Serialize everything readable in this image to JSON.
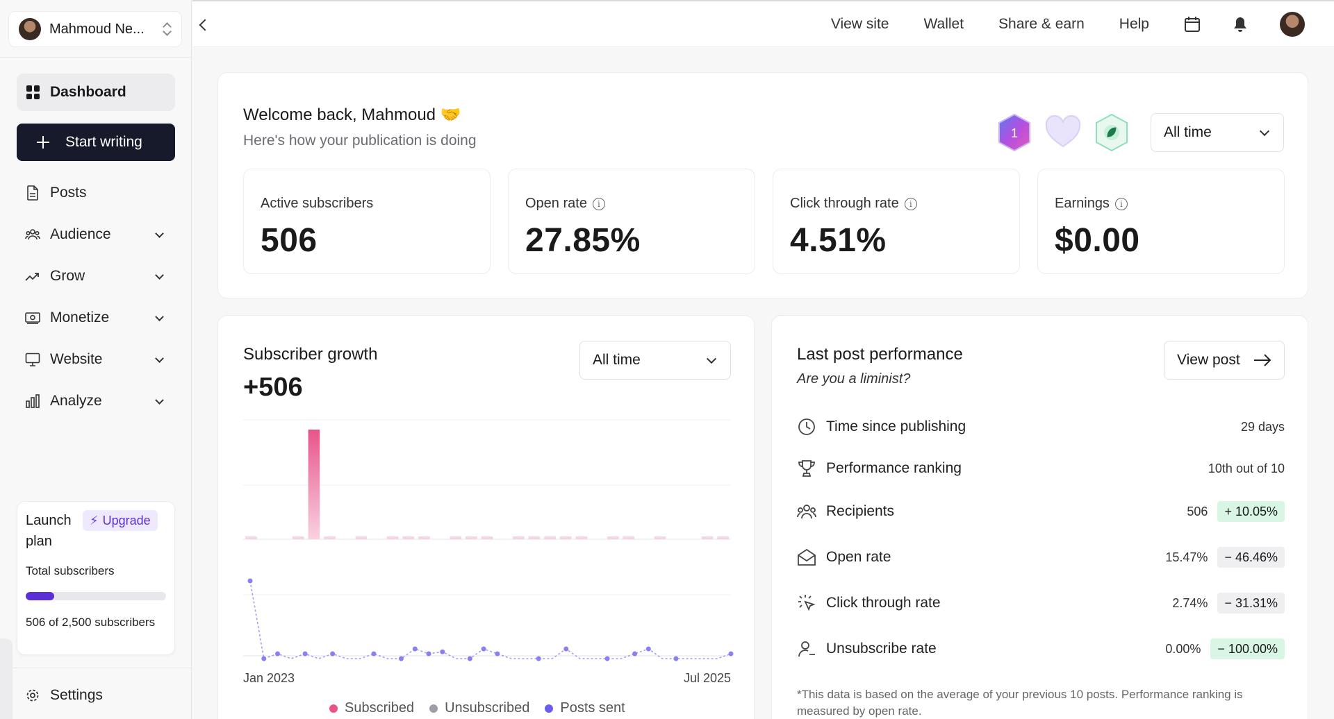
{
  "account": {
    "name": "Mahmoud Ne..."
  },
  "sidebar": {
    "dashboard": "Dashboard",
    "start_writing": "Start writing",
    "items": [
      {
        "label": "Posts",
        "icon": "document-icon",
        "has_chevron": false
      },
      {
        "label": "Audience",
        "icon": "people-icon",
        "has_chevron": true
      },
      {
        "label": "Grow",
        "icon": "trend-up-icon",
        "has_chevron": true
      },
      {
        "label": "Monetize",
        "icon": "money-icon",
        "has_chevron": true
      },
      {
        "label": "Website",
        "icon": "monitor-icon",
        "has_chevron": true
      },
      {
        "label": "Analyze",
        "icon": "bar-chart-icon",
        "has_chevron": true
      }
    ],
    "settings": "Settings"
  },
  "plan": {
    "title": "Launch plan",
    "upgrade": "Upgrade",
    "total_label": "Total subscribers",
    "progress_fraction": 0.2024,
    "count_text": "506 of 2,500 subscribers"
  },
  "topbar": {
    "links": [
      "View site",
      "Wallet",
      "Share & earn",
      "Help"
    ],
    "icons": [
      "calendar-icon",
      "bell-icon",
      "avatar"
    ]
  },
  "welcome": {
    "title": "Welcome back, Mahmoud 🤝",
    "subtitle": "Here's how your publication is doing",
    "badge_number": "1",
    "time_filter": "All time"
  },
  "stats": [
    {
      "label": "Active subscribers",
      "value": "506",
      "info": false
    },
    {
      "label": "Open rate",
      "value": "27.85%",
      "info": true
    },
    {
      "label": "Click through rate",
      "value": "4.51%",
      "info": true
    },
    {
      "label": "Earnings",
      "value": "$0.00",
      "info": true
    }
  ],
  "growth": {
    "title": "Subscriber growth",
    "value": "+506",
    "time_filter": "All time"
  },
  "chart_data": {
    "type": "bar",
    "x_tick_labels": [
      "Jan 2023",
      "Jul 2025"
    ],
    "series": [
      {
        "name": "Subscribed",
        "color": "#e8548a",
        "values": [
          1,
          0,
          0,
          0,
          200,
          0,
          0,
          0,
          0,
          0,
          0,
          0,
          0,
          0,
          0,
          0,
          0,
          0,
          0,
          0,
          0,
          0,
          0,
          0,
          0,
          0,
          0,
          0,
          0,
          0,
          0
        ]
      },
      {
        "name": "Unsubscribed",
        "color": "#9e9ea6",
        "values": []
      },
      {
        "name": "Posts sent",
        "color": "#6b5cf0",
        "values": []
      }
    ],
    "bars_small": [
      6,
      0,
      0,
      3,
      3,
      3,
      0,
      3,
      0,
      3,
      3,
      12,
      0,
      3,
      3,
      3,
      0,
      3,
      3,
      4,
      3,
      3,
      0,
      8,
      3,
      0,
      3,
      0,
      0,
      3,
      3
    ],
    "posts_sent": [
      8,
      0,
      0.5,
      0,
      0.5,
      0,
      0.5,
      0,
      0,
      0.5,
      0,
      0,
      1,
      0.5,
      0.7,
      0,
      0,
      1,
      0.5,
      0,
      0,
      0,
      0,
      1,
      0,
      0,
      0,
      0,
      0.5,
      1,
      0,
      0,
      0,
      0,
      0,
      0.5
    ],
    "legend_placement": "bottom"
  },
  "last_post": {
    "title": "Last post performance",
    "subtitle": "Are you a liminist?",
    "view_post": "View post",
    "rows": [
      {
        "label": "Time since publishing",
        "icon": "clock-icon",
        "value": "29 days",
        "delta": "",
        "delta_style": ""
      },
      {
        "label": "Performance ranking",
        "icon": "trophy-icon",
        "value": "10th out of 10",
        "delta": "",
        "delta_style": ""
      },
      {
        "label": "Recipients",
        "icon": "people-icon",
        "value": "506",
        "delta": "+ 10.05%",
        "delta_style": "green"
      },
      {
        "label": "Open rate",
        "icon": "envelope-open-icon",
        "value": "15.47%",
        "delta": "− 46.46%",
        "delta_style": "gray"
      },
      {
        "label": "Click through rate",
        "icon": "cursor-click-icon",
        "value": "2.74%",
        "delta": "− 31.31%",
        "delta_style": "gray"
      },
      {
        "label": "Unsubscribe rate",
        "icon": "user-minus-icon",
        "value": "0.00%",
        "delta": "− 100.00%",
        "delta_style": "green"
      }
    ],
    "footnote": "*This data is based on the average of your previous 10 posts. Performance ranking is measured by open rate."
  }
}
